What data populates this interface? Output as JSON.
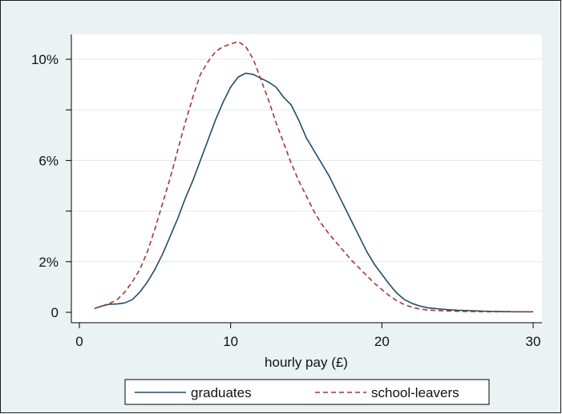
{
  "chart_data": {
    "type": "line",
    "title": "",
    "xlabel": "hourly pay (£)",
    "ylabel": "",
    "xlim": [
      0,
      30
    ],
    "ylim": [
      0,
      10
    ],
    "grid": "horizontal",
    "legend_position": "bottom",
    "x_ticks": [
      {
        "value": 0,
        "label": "0"
      },
      {
        "value": 10,
        "label": "10"
      },
      {
        "value": 20,
        "label": "20"
      },
      {
        "value": 30,
        "label": "30"
      }
    ],
    "y_ticks": [
      {
        "value": 0,
        "label": "0"
      },
      {
        "value": 2,
        "label": "2%"
      },
      {
        "value": 4,
        "label": ""
      },
      {
        "value": 6,
        "label": "6%"
      },
      {
        "value": 8,
        "label": ""
      },
      {
        "value": 10,
        "label": "10%"
      }
    ],
    "series": [
      {
        "name": "graduates",
        "color": "#1f4e62",
        "dash": "solid",
        "points": [
          [
            1.0,
            0.15
          ],
          [
            1.5,
            0.25
          ],
          [
            2.0,
            0.32
          ],
          [
            2.5,
            0.33
          ],
          [
            3.0,
            0.37
          ],
          [
            3.5,
            0.5
          ],
          [
            4.0,
            0.8
          ],
          [
            4.5,
            1.2
          ],
          [
            5.0,
            1.7
          ],
          [
            5.5,
            2.3
          ],
          [
            6.0,
            3.0
          ],
          [
            6.5,
            3.7
          ],
          [
            7.0,
            4.5
          ],
          [
            7.5,
            5.2
          ],
          [
            8.0,
            6.0
          ],
          [
            8.5,
            6.8
          ],
          [
            9.0,
            7.6
          ],
          [
            9.5,
            8.3
          ],
          [
            10.0,
            8.9
          ],
          [
            10.5,
            9.3
          ],
          [
            11.0,
            9.45
          ],
          [
            11.5,
            9.4
          ],
          [
            12.0,
            9.25
          ],
          [
            12.5,
            9.1
          ],
          [
            13.0,
            8.9
          ],
          [
            13.5,
            8.5
          ],
          [
            14.0,
            8.2
          ],
          [
            14.5,
            7.6
          ],
          [
            15.0,
            6.9
          ],
          [
            15.5,
            6.4
          ],
          [
            16.0,
            5.9
          ],
          [
            16.5,
            5.4
          ],
          [
            17.0,
            4.8
          ],
          [
            17.5,
            4.2
          ],
          [
            18.0,
            3.6
          ],
          [
            18.5,
            3.0
          ],
          [
            19.0,
            2.4
          ],
          [
            19.5,
            1.9
          ],
          [
            20.0,
            1.5
          ],
          [
            20.5,
            1.1
          ],
          [
            21.0,
            0.75
          ],
          [
            21.5,
            0.5
          ],
          [
            22.0,
            0.35
          ],
          [
            22.5,
            0.25
          ],
          [
            23.0,
            0.18
          ],
          [
            24.0,
            0.12
          ],
          [
            25.0,
            0.08
          ],
          [
            26.0,
            0.06
          ],
          [
            27.0,
            0.04
          ],
          [
            28.0,
            0.03
          ],
          [
            29.0,
            0.02
          ],
          [
            30.0,
            0.02
          ]
        ]
      },
      {
        "name": "school-leavers",
        "color": "#a8323a",
        "dash": "dashed",
        "points": [
          [
            1.0,
            0.15
          ],
          [
            1.5,
            0.25
          ],
          [
            2.0,
            0.35
          ],
          [
            2.5,
            0.5
          ],
          [
            3.0,
            0.8
          ],
          [
            3.5,
            1.2
          ],
          [
            4.0,
            1.7
          ],
          [
            4.5,
            2.4
          ],
          [
            5.0,
            3.3
          ],
          [
            5.5,
            4.3
          ],
          [
            6.0,
            5.3
          ],
          [
            6.5,
            6.4
          ],
          [
            7.0,
            7.5
          ],
          [
            7.5,
            8.5
          ],
          [
            8.0,
            9.4
          ],
          [
            8.5,
            9.9
          ],
          [
            9.0,
            10.3
          ],
          [
            9.5,
            10.5
          ],
          [
            10.0,
            10.6
          ],
          [
            10.5,
            10.7
          ],
          [
            11.0,
            10.5
          ],
          [
            11.5,
            10.0
          ],
          [
            12.0,
            9.2
          ],
          [
            12.5,
            8.4
          ],
          [
            13.0,
            7.5
          ],
          [
            13.5,
            6.7
          ],
          [
            14.0,
            5.9
          ],
          [
            14.5,
            5.2
          ],
          [
            15.0,
            4.6
          ],
          [
            15.5,
            4.0
          ],
          [
            16.0,
            3.5
          ],
          [
            16.5,
            3.1
          ],
          [
            17.0,
            2.75
          ],
          [
            17.5,
            2.4
          ],
          [
            18.0,
            2.05
          ],
          [
            18.5,
            1.75
          ],
          [
            19.0,
            1.45
          ],
          [
            19.5,
            1.15
          ],
          [
            20.0,
            0.9
          ],
          [
            20.5,
            0.65
          ],
          [
            21.0,
            0.45
          ],
          [
            21.5,
            0.3
          ],
          [
            22.0,
            0.2
          ],
          [
            22.5,
            0.13
          ],
          [
            23.0,
            0.09
          ],
          [
            24.0,
            0.06
          ],
          [
            25.0,
            0.04
          ],
          [
            26.0,
            0.03
          ],
          [
            27.0,
            0.02
          ],
          [
            28.0,
            0.02
          ],
          [
            29.0,
            0.02
          ],
          [
            30.0,
            0.02
          ]
        ]
      }
    ]
  },
  "legend": {
    "items": [
      {
        "label": "graduates"
      },
      {
        "label": "school-leavers"
      }
    ]
  }
}
